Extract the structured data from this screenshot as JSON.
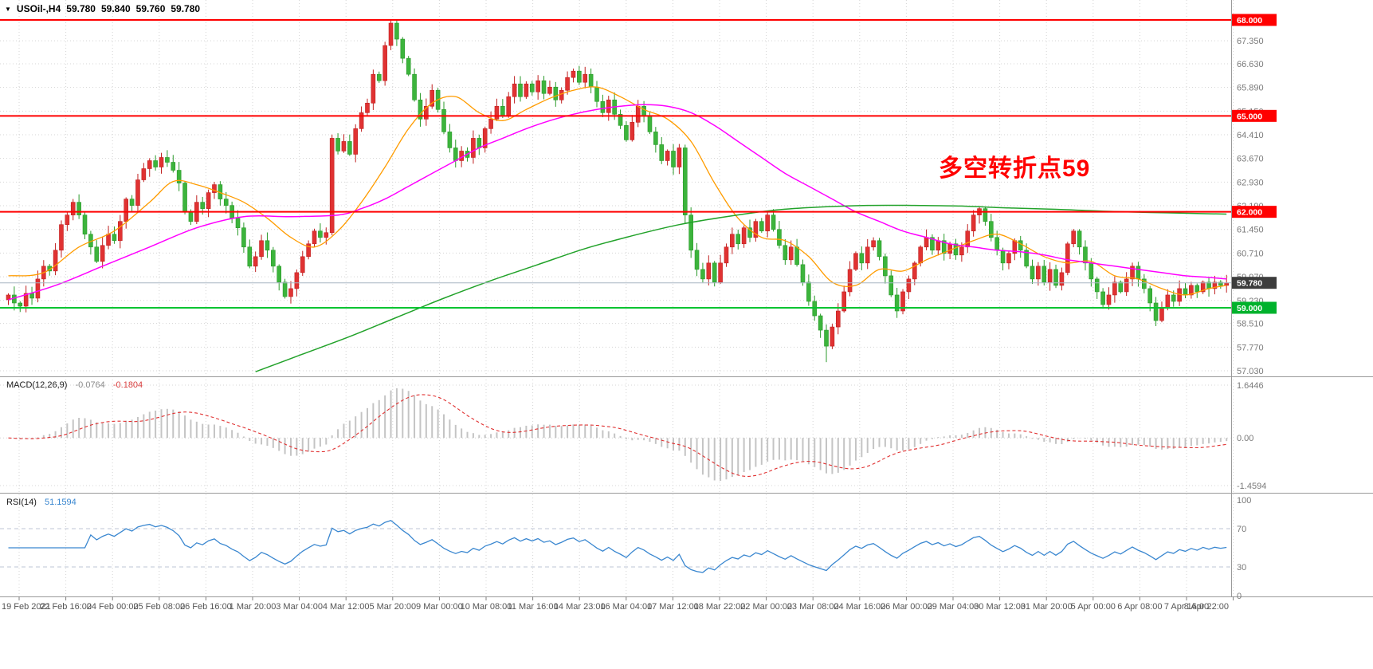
{
  "header": {
    "dropdown_icon": "▼",
    "symbol": "USOil-,H4",
    "open": "59.780",
    "high": "59.840",
    "low": "59.760",
    "close": "59.780"
  },
  "annotation": {
    "text": "多空转折点59",
    "color": "#ff0000"
  },
  "indicator_labels": {
    "macd": {
      "name": "MACD(12,26,9)",
      "main_value": "-0.0764",
      "signal_value": "-0.1804"
    },
    "rsi": {
      "name": "RSI(14)",
      "value": "51.1594"
    }
  },
  "chart_data": {
    "type": "candlestick",
    "symbol": "USOil-",
    "timeframe": "H4",
    "ylim": [
      56.9,
      68.6
    ],
    "up_color": "#e03232",
    "down_color": "#3cb43c",
    "down_stroke": "#2a9a2a",
    "up_stroke": "#c02020",
    "price_axis_ticks": [
      67.35,
      66.63,
      65.89,
      65.15,
      64.41,
      63.67,
      62.93,
      62.19,
      61.45,
      60.71,
      59.97,
      59.23,
      58.51,
      57.77,
      57.03
    ],
    "time_axis_labels": [
      "19 Feb 2021",
      "22 Feb 16:00",
      "24 Feb 00:00",
      "25 Feb 08:00",
      "26 Feb 16:00",
      "1 Mar 20:00",
      "3 Mar 04:00",
      "4 Mar 12:00",
      "5 Mar 20:00",
      "9 Mar 00:00",
      "10 Mar 08:00",
      "11 Mar 16:00",
      "14 Mar 23:00",
      "16 Mar 04:00",
      "17 Mar 12:00",
      "18 Mar 22:00",
      "22 Mar 00:00",
      "23 Mar 08:00",
      "24 Mar 16:00",
      "26 Mar 00:00",
      "29 Mar 04:00",
      "30 Mar 12:00",
      "31 Mar 20:00",
      "5 Apr 00:00",
      "6 Apr 08:00",
      "7 Apr 16:00",
      "8 Apr 22:00"
    ],
    "closes": [
      59.4,
      59.15,
      59.05,
      59.45,
      59.3,
      59.9,
      60.3,
      60.15,
      60.8,
      61.6,
      61.9,
      62.3,
      61.9,
      61.3,
      60.9,
      60.45,
      60.95,
      61.3,
      61.1,
      61.7,
      62.4,
      62.2,
      63.0,
      63.35,
      63.6,
      63.4,
      63.7,
      63.55,
      63.3,
      62.9,
      62.0,
      61.7,
      62.3,
      62.1,
      62.6,
      62.85,
      62.4,
      62.2,
      61.8,
      61.5,
      60.9,
      60.3,
      60.6,
      61.1,
      60.8,
      60.3,
      59.8,
      59.35,
      59.6,
      60.1,
      60.6,
      61.0,
      61.4,
      61.2,
      61.35,
      64.3,
      63.9,
      64.2,
      63.8,
      64.6,
      65.1,
      65.4,
      66.3,
      66.1,
      67.2,
      67.9,
      67.4,
      66.8,
      66.3,
      65.5,
      64.9,
      65.3,
      65.8,
      65.2,
      64.5,
      64.0,
      63.6,
      63.9,
      63.7,
      64.3,
      64.0,
      64.6,
      64.9,
      65.3,
      65.0,
      65.6,
      66.0,
      65.6,
      66.0,
      65.75,
      66.1,
      65.7,
      65.9,
      65.5,
      65.8,
      66.2,
      66.4,
      66.05,
      66.3,
      65.9,
      65.45,
      65.1,
      65.5,
      65.05,
      64.7,
      64.25,
      64.8,
      65.3,
      65.0,
      64.5,
      64.1,
      63.6,
      63.9,
      63.4,
      64.0,
      61.9,
      60.8,
      60.2,
      59.9,
      60.4,
      59.8,
      60.4,
      60.9,
      61.3,
      61.0,
      61.5,
      61.2,
      61.7,
      61.4,
      61.9,
      61.45,
      60.95,
      60.5,
      60.9,
      60.35,
      59.8,
      59.2,
      58.75,
      58.3,
      57.8,
      58.4,
      58.9,
      59.5,
      60.2,
      60.7,
      60.4,
      60.9,
      61.1,
      60.6,
      60.0,
      59.4,
      58.9,
      59.5,
      59.9,
      60.4,
      60.9,
      61.2,
      60.8,
      61.1,
      60.7,
      61.0,
      60.65,
      60.9,
      61.4,
      61.9,
      62.1,
      61.7,
      61.2,
      60.8,
      60.4,
      60.7,
      61.1,
      60.8,
      60.3,
      59.9,
      60.3,
      59.8,
      60.2,
      59.7,
      60.1,
      61.0,
      61.4,
      60.9,
      60.4,
      59.9,
      59.5,
      59.1,
      59.4,
      59.8,
      59.5,
      59.9,
      60.3,
      59.9,
      59.6,
      59.15,
      58.6,
      59.0,
      59.4,
      59.2,
      59.6,
      59.4,
      59.7,
      59.5,
      59.8,
      59.6,
      59.8,
      59.7,
      59.78
    ],
    "horizontal_lines": [
      {
        "price": 68.0,
        "label": "68.000",
        "color": "#ff0000",
        "badge_bg": "#ff0000",
        "type": "resistance"
      },
      {
        "price": 65.0,
        "label": "65.000",
        "color": "#ff0000",
        "badge_bg": "#ff0000",
        "type": "resistance"
      },
      {
        "price": 62.0,
        "label": "62.000",
        "color": "#ff0000",
        "badge_bg": "#ff0000",
        "type": "resistance"
      },
      {
        "price": 59.0,
        "label": "59.000",
        "color": "#00c430",
        "badge_bg": "#00b22c",
        "type": "support"
      },
      {
        "price": 59.78,
        "label": "59.780",
        "color": "#a8b6c4",
        "badge_bg": "#3c3c3c",
        "type": "current-price"
      }
    ],
    "moving_averages": [
      {
        "name": "ma-fast",
        "color": "#ff9c00",
        "points": [
          [
            0,
            60.0
          ],
          [
            6,
            60.1
          ],
          [
            12,
            60.9
          ],
          [
            18,
            61.4
          ],
          [
            24,
            62.3
          ],
          [
            28,
            62.95
          ],
          [
            32,
            62.85
          ],
          [
            36,
            62.6
          ],
          [
            40,
            62.3
          ],
          [
            44,
            61.8
          ],
          [
            48,
            61.2
          ],
          [
            52,
            60.9
          ],
          [
            56,
            61.4
          ],
          [
            60,
            62.3
          ],
          [
            64,
            63.4
          ],
          [
            68,
            64.6
          ],
          [
            72,
            65.4
          ],
          [
            76,
            65.6
          ],
          [
            80,
            65.1
          ],
          [
            84,
            64.85
          ],
          [
            88,
            65.2
          ],
          [
            92,
            65.55
          ],
          [
            96,
            65.8
          ],
          [
            100,
            65.9
          ],
          [
            104,
            65.6
          ],
          [
            108,
            65.2
          ],
          [
            112,
            64.9
          ],
          [
            116,
            64.2
          ],
          [
            120,
            62.9
          ],
          [
            124,
            61.8
          ],
          [
            128,
            61.2
          ],
          [
            132,
            61.1
          ],
          [
            136,
            60.6
          ],
          [
            140,
            59.8
          ],
          [
            144,
            59.7
          ],
          [
            148,
            60.2
          ],
          [
            152,
            60.15
          ],
          [
            156,
            60.5
          ],
          [
            160,
            60.8
          ],
          [
            164,
            61.1
          ],
          [
            168,
            61.3
          ],
          [
            172,
            61.0
          ],
          [
            176,
            60.6
          ],
          [
            180,
            60.4
          ],
          [
            184,
            60.45
          ],
          [
            188,
            60.0
          ],
          [
            192,
            59.9
          ],
          [
            196,
            59.6
          ],
          [
            200,
            59.4
          ],
          [
            204,
            59.6
          ],
          [
            207,
            59.7
          ]
        ]
      },
      {
        "name": "ma-medium",
        "color": "#ff00ff",
        "points": [
          [
            0,
            59.25
          ],
          [
            8,
            59.7
          ],
          [
            16,
            60.3
          ],
          [
            24,
            60.9
          ],
          [
            32,
            61.5
          ],
          [
            40,
            61.85
          ],
          [
            48,
            61.85
          ],
          [
            56,
            61.9
          ],
          [
            60,
            62.1
          ],
          [
            64,
            62.4
          ],
          [
            68,
            62.8
          ],
          [
            72,
            63.2
          ],
          [
            76,
            63.6
          ],
          [
            80,
            64.0
          ],
          [
            84,
            64.3
          ],
          [
            88,
            64.6
          ],
          [
            92,
            64.85
          ],
          [
            96,
            65.05
          ],
          [
            100,
            65.2
          ],
          [
            104,
            65.3
          ],
          [
            108,
            65.35
          ],
          [
            112,
            65.3
          ],
          [
            116,
            65.1
          ],
          [
            120,
            64.7
          ],
          [
            124,
            64.2
          ],
          [
            128,
            63.7
          ],
          [
            132,
            63.2
          ],
          [
            136,
            62.8
          ],
          [
            140,
            62.4
          ],
          [
            144,
            62.0
          ],
          [
            148,
            61.7
          ],
          [
            152,
            61.4
          ],
          [
            156,
            61.2
          ],
          [
            160,
            61.0
          ],
          [
            164,
            60.9
          ],
          [
            168,
            60.8
          ],
          [
            172,
            60.75
          ],
          [
            176,
            60.65
          ],
          [
            180,
            60.5
          ],
          [
            184,
            60.4
          ],
          [
            188,
            60.3
          ],
          [
            192,
            60.2
          ],
          [
            196,
            60.1
          ],
          [
            200,
            60.0
          ],
          [
            204,
            59.95
          ],
          [
            207,
            59.9
          ]
        ]
      },
      {
        "name": "ma-slow",
        "color": "#22a22a",
        "points": [
          [
            42,
            57.0
          ],
          [
            50,
            57.55
          ],
          [
            58,
            58.1
          ],
          [
            66,
            58.7
          ],
          [
            74,
            59.3
          ],
          [
            82,
            59.85
          ],
          [
            90,
            60.35
          ],
          [
            98,
            60.85
          ],
          [
            106,
            61.25
          ],
          [
            114,
            61.6
          ],
          [
            122,
            61.85
          ],
          [
            130,
            62.05
          ],
          [
            138,
            62.15
          ],
          [
            146,
            62.2
          ],
          [
            154,
            62.2
          ],
          [
            162,
            62.18
          ],
          [
            170,
            62.12
          ],
          [
            178,
            62.08
          ],
          [
            186,
            62.02
          ],
          [
            194,
            61.98
          ],
          [
            202,
            61.95
          ],
          [
            207,
            61.93
          ]
        ]
      }
    ],
    "macd": {
      "fast": 12,
      "slow": 26,
      "signal": 9,
      "current_main": -0.0764,
      "current_signal": -0.1804,
      "axis_labels": [
        "1.6446",
        "0.00",
        "-1.4594"
      ],
      "histogram_color": "#c4c4c4",
      "signal_color": "#e03030"
    },
    "rsi": {
      "period": 14,
      "current": 51.1594,
      "axis_labels": [
        "100",
        "70",
        "30",
        "0"
      ],
      "levels": [
        70,
        30
      ],
      "color": "#3a87d0",
      "level_color": "#bcc4d4"
    }
  }
}
